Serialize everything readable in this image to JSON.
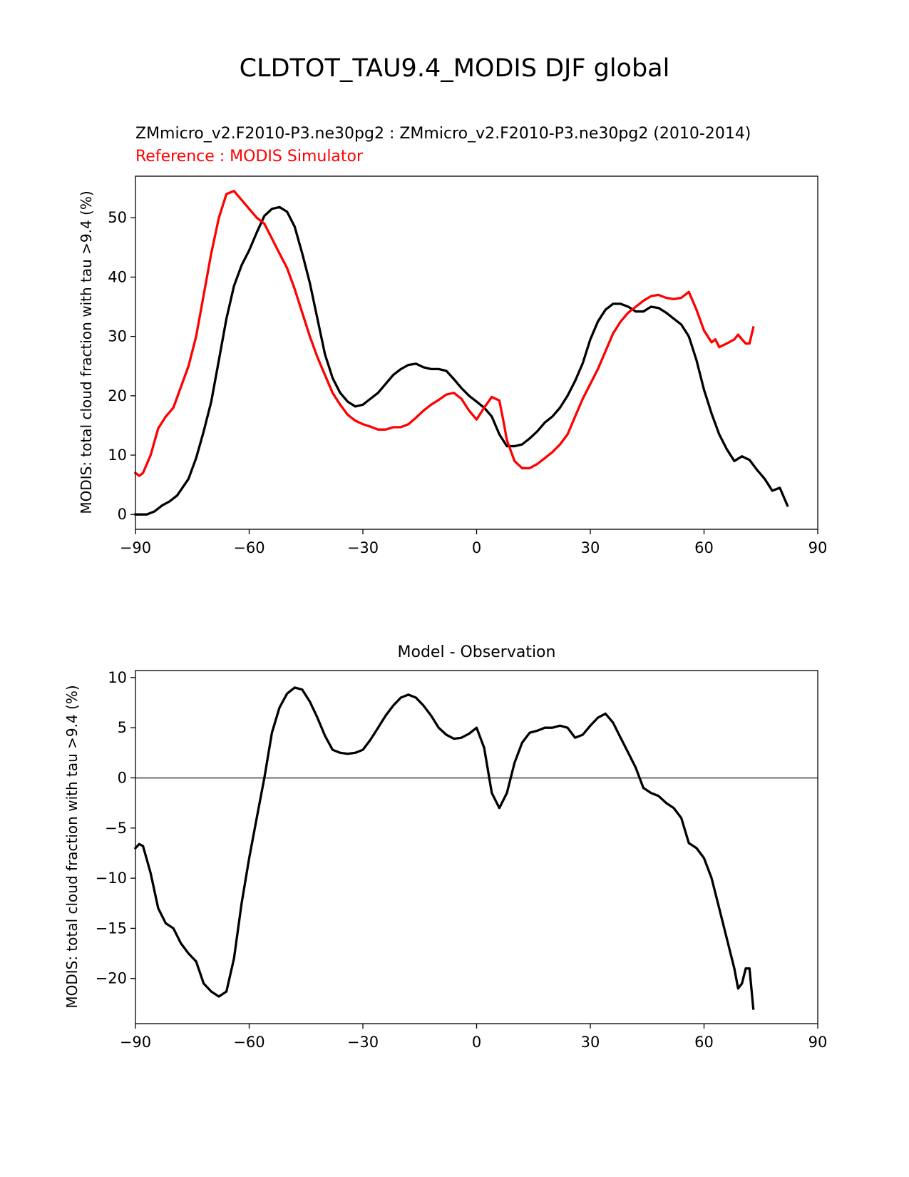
{
  "figure": {
    "suptitle": "CLDTOT_TAU9.4_MODIS DJF global",
    "colors": {
      "model": "#000000",
      "reference": "#ff0000",
      "zero_line": "#808080"
    }
  },
  "chart_data": [
    {
      "type": "line",
      "title_line1": "ZMmicro_v2.F2010-P3.ne30pg2 : ZMmicro_v2.F2010-P3.ne30pg2 (2010-2014)",
      "title_line2": "Reference : MODIS Simulator",
      "ylabel": "MODIS: total cloud fraction with tau >9.4 (%)",
      "xlabel": "",
      "xlim": [
        -90,
        90
      ],
      "ylim": [
        -2.5,
        57
      ],
      "xticks": [
        -90,
        -60,
        -30,
        0,
        30,
        60,
        90
      ],
      "xtick_labels": [
        "−90",
        "−60",
        "−30",
        "0",
        "30",
        "60",
        "90"
      ],
      "yticks": [
        0,
        10,
        20,
        30,
        40,
        50
      ],
      "ytick_labels": [
        "0",
        "10",
        "20",
        "30",
        "40",
        "50"
      ],
      "series": [
        {
          "role": "model",
          "color": "#000000",
          "points": [
            [
              -90,
              0
            ],
            [
              -87,
              0
            ],
            [
              -85,
              0.5
            ],
            [
              -83,
              1.5
            ],
            [
              -81,
              2.2
            ],
            [
              -79,
              3.2
            ],
            [
              -76,
              6
            ],
            [
              -74,
              9.5
            ],
            [
              -72,
              14
            ],
            [
              -70,
              19
            ],
            [
              -68,
              26
            ],
            [
              -66,
              33
            ],
            [
              -64,
              38.5
            ],
            [
              -62,
              42
            ],
            [
              -60,
              44.5
            ],
            [
              -58,
              47.5
            ],
            [
              -56,
              50.3
            ],
            [
              -54,
              51.5
            ],
            [
              -52,
              51.8
            ],
            [
              -50,
              51
            ],
            [
              -48,
              48.5
            ],
            [
              -46,
              44
            ],
            [
              -44,
              39
            ],
            [
              -42,
              33
            ],
            [
              -40,
              27
            ],
            [
              -38,
              23
            ],
            [
              -36,
              20.5
            ],
            [
              -34,
              19
            ],
            [
              -32,
              18.2
            ],
            [
              -30,
              18.5
            ],
            [
              -28,
              19.5
            ],
            [
              -26,
              20.5
            ],
            [
              -24,
              22
            ],
            [
              -22,
              23.5
            ],
            [
              -20,
              24.5
            ],
            [
              -18,
              25.2
            ],
            [
              -16,
              25.4
            ],
            [
              -14,
              24.8
            ],
            [
              -12,
              24.5
            ],
            [
              -10,
              24.5
            ],
            [
              -8,
              24.2
            ],
            [
              -6,
              22.8
            ],
            [
              -4,
              21.3
            ],
            [
              -2,
              20
            ],
            [
              0,
              19
            ],
            [
              2,
              18
            ],
            [
              4,
              16.5
            ],
            [
              6,
              13.5
            ],
            [
              8,
              11.5
            ],
            [
              10,
              11.5
            ],
            [
              12,
              11.8
            ],
            [
              14,
              12.8
            ],
            [
              16,
              14
            ],
            [
              18,
              15.5
            ],
            [
              20,
              16.5
            ],
            [
              22,
              18
            ],
            [
              24,
              20
            ],
            [
              26,
              22.5
            ],
            [
              28,
              25.5
            ],
            [
              30,
              29.5
            ],
            [
              32,
              32.5
            ],
            [
              34,
              34.5
            ],
            [
              36,
              35.5
            ],
            [
              38,
              35.5
            ],
            [
              40,
              35
            ],
            [
              42,
              34.2
            ],
            [
              44,
              34.2
            ],
            [
              46,
              35
            ],
            [
              48,
              34.8
            ],
            [
              50,
              34
            ],
            [
              52,
              33
            ],
            [
              54,
              32
            ],
            [
              56,
              30
            ],
            [
              58,
              26
            ],
            [
              60,
              21
            ],
            [
              62,
              17
            ],
            [
              64,
              13.5
            ],
            [
              66,
              11
            ],
            [
              68,
              9
            ],
            [
              70,
              9.8
            ],
            [
              72,
              9.2
            ],
            [
              74,
              7.5
            ],
            [
              76,
              6
            ],
            [
              78,
              4
            ],
            [
              80,
              4.5
            ],
            [
              82,
              1.5
            ]
          ]
        },
        {
          "role": "reference",
          "color": "#ff0000",
          "points": [
            [
              -90,
              7
            ],
            [
              -89,
              6.5
            ],
            [
              -88,
              7
            ],
            [
              -86,
              10
            ],
            [
              -84,
              14.5
            ],
            [
              -82,
              16.5
            ],
            [
              -80,
              18
            ],
            [
              -78,
              21.5
            ],
            [
              -76,
              25
            ],
            [
              -74,
              30
            ],
            [
              -72,
              37
            ],
            [
              -70,
              44
            ],
            [
              -68,
              50
            ],
            [
              -66,
              54
            ],
            [
              -64,
              54.5
            ],
            [
              -62,
              53
            ],
            [
              -60,
              51.5
            ],
            [
              -58,
              50
            ],
            [
              -56,
              49
            ],
            [
              -54,
              46.5
            ],
            [
              -52,
              44
            ],
            [
              -50,
              41.5
            ],
            [
              -48,
              38
            ],
            [
              -46,
              34
            ],
            [
              -44,
              30
            ],
            [
              -42,
              26.5
            ],
            [
              -40,
              23.5
            ],
            [
              -38,
              20.5
            ],
            [
              -36,
              18.5
            ],
            [
              -34,
              16.8
            ],
            [
              -32,
              15.8
            ],
            [
              -30,
              15.2
            ],
            [
              -28,
              14.8
            ],
            [
              -26,
              14.3
            ],
            [
              -24,
              14.3
            ],
            [
              -22,
              14.7
            ],
            [
              -20,
              14.7
            ],
            [
              -18,
              15.2
            ],
            [
              -16,
              16.3
            ],
            [
              -14,
              17.5
            ],
            [
              -12,
              18.5
            ],
            [
              -10,
              19.3
            ],
            [
              -8,
              20.2
            ],
            [
              -6,
              20.5
            ],
            [
              -4,
              19.5
            ],
            [
              -2,
              17.5
            ],
            [
              0,
              16
            ],
            [
              2,
              18
            ],
            [
              4,
              19.8
            ],
            [
              6,
              19.2
            ],
            [
              7,
              16
            ],
            [
              8,
              12.5
            ],
            [
              10,
              9
            ],
            [
              12,
              7.8
            ],
            [
              14,
              7.8
            ],
            [
              16,
              8.5
            ],
            [
              18,
              9.5
            ],
            [
              20,
              10.5
            ],
            [
              22,
              11.8
            ],
            [
              24,
              13.5
            ],
            [
              26,
              16.5
            ],
            [
              28,
              19.5
            ],
            [
              30,
              22
            ],
            [
              32,
              24.5
            ],
            [
              34,
              27.5
            ],
            [
              36,
              30.5
            ],
            [
              38,
              32.5
            ],
            [
              40,
              34
            ],
            [
              42,
              35
            ],
            [
              44,
              36
            ],
            [
              46,
              36.8
            ],
            [
              48,
              37
            ],
            [
              50,
              36.5
            ],
            [
              52,
              36.3
            ],
            [
              54,
              36.5
            ],
            [
              56,
              37.5
            ],
            [
              58,
              34.5
            ],
            [
              60,
              31
            ],
            [
              62,
              29
            ],
            [
              63,
              29.5
            ],
            [
              64,
              28.2
            ],
            [
              66,
              28.8
            ],
            [
              68,
              29.5
            ],
            [
              69,
              30.3
            ],
            [
              70,
              29.5
            ],
            [
              71,
              28.8
            ],
            [
              72,
              28.8
            ],
            [
              73,
              31.5
            ]
          ]
        }
      ]
    },
    {
      "type": "line",
      "title": "Model - Observation",
      "ylabel": "MODIS: total cloud fraction with tau >9.4 (%)",
      "xlabel": "",
      "xlim": [
        -90,
        90
      ],
      "ylim": [
        -24.5,
        10.7
      ],
      "xticks": [
        -90,
        -60,
        -30,
        0,
        30,
        60,
        90
      ],
      "xtick_labels": [
        "−90",
        "−60",
        "−30",
        "0",
        "30",
        "60",
        "90"
      ],
      "yticks": [
        10,
        5,
        0,
        -5,
        -10,
        -15,
        -20
      ],
      "ytick_labels": [
        "10",
        "5",
        "0",
        "−5",
        "−10",
        "−15",
        "−20"
      ],
      "zero_line": 0,
      "series": [
        {
          "role": "difference",
          "color": "#000000",
          "points": [
            [
              -90,
              -7
            ],
            [
              -89,
              -6.6
            ],
            [
              -88,
              -6.8
            ],
            [
              -86,
              -9.5
            ],
            [
              -84,
              -13
            ],
            [
              -82,
              -14.5
            ],
            [
              -80,
              -15
            ],
            [
              -78,
              -16.5
            ],
            [
              -76,
              -17.5
            ],
            [
              -74,
              -18.3
            ],
            [
              -72,
              -20.5
            ],
            [
              -70,
              -21.3
            ],
            [
              -68,
              -21.8
            ],
            [
              -66,
              -21.3
            ],
            [
              -64,
              -18
            ],
            [
              -62,
              -12.5
            ],
            [
              -60,
              -8
            ],
            [
              -58,
              -4
            ],
            [
              -56,
              0
            ],
            [
              -54,
              4.5
            ],
            [
              -52,
              7
            ],
            [
              -50,
              8.4
            ],
            [
              -48,
              9
            ],
            [
              -46,
              8.8
            ],
            [
              -44,
              7.6
            ],
            [
              -42,
              6
            ],
            [
              -40,
              4.2
            ],
            [
              -38,
              2.8
            ],
            [
              -36,
              2.5
            ],
            [
              -34,
              2.4
            ],
            [
              -32,
              2.5
            ],
            [
              -30,
              2.8
            ],
            [
              -28,
              3.8
            ],
            [
              -26,
              5
            ],
            [
              -24,
              6.2
            ],
            [
              -22,
              7.2
            ],
            [
              -20,
              8
            ],
            [
              -18,
              8.3
            ],
            [
              -16,
              8
            ],
            [
              -14,
              7.2
            ],
            [
              -12,
              6.2
            ],
            [
              -10,
              5
            ],
            [
              -8,
              4.3
            ],
            [
              -6,
              3.9
            ],
            [
              -4,
              4
            ],
            [
              -2,
              4.4
            ],
            [
              0,
              5
            ],
            [
              2,
              3
            ],
            [
              4,
              -1.5
            ],
            [
              6,
              -3
            ],
            [
              8,
              -1.5
            ],
            [
              10,
              1.5
            ],
            [
              12,
              3.5
            ],
            [
              14,
              4.5
            ],
            [
              16,
              4.7
            ],
            [
              18,
              5
            ],
            [
              20,
              5
            ],
            [
              22,
              5.2
            ],
            [
              24,
              5
            ],
            [
              26,
              4
            ],
            [
              28,
              4.3
            ],
            [
              30,
              5.2
            ],
            [
              32,
              6
            ],
            [
              34,
              6.4
            ],
            [
              36,
              5.5
            ],
            [
              38,
              4
            ],
            [
              40,
              2.5
            ],
            [
              42,
              1
            ],
            [
              44,
              -1
            ],
            [
              46,
              -1.5
            ],
            [
              48,
              -1.8
            ],
            [
              50,
              -2.5
            ],
            [
              52,
              -3
            ],
            [
              54,
              -4
            ],
            [
              56,
              -6.5
            ],
            [
              58,
              -7
            ],
            [
              60,
              -8
            ],
            [
              62,
              -10
            ],
            [
              64,
              -13
            ],
            [
              66,
              -16
            ],
            [
              68,
              -19
            ],
            [
              69,
              -21
            ],
            [
              70,
              -20.5
            ],
            [
              71,
              -19
            ],
            [
              72,
              -19
            ],
            [
              73,
              -23
            ]
          ]
        }
      ]
    }
  ]
}
